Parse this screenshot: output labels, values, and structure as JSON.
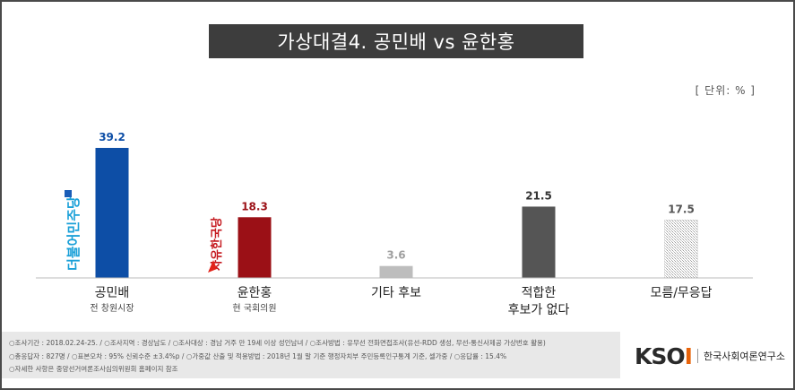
{
  "title": "가상대결4. 공민배 vs 윤한홍",
  "unit": "[ 단위: % ]",
  "chart_data": {
    "type": "bar",
    "categories": [
      "공민배",
      "윤한홍",
      "기타 후보",
      "적합한 후보가 없다",
      "모름/무응답"
    ],
    "subtitles": [
      "전 창원시장",
      "현 국회의원",
      "",
      "",
      ""
    ],
    "values": [
      39.2,
      18.3,
      3.6,
      21.5,
      17.5
    ],
    "value_labels": [
      "39.2",
      "18.3",
      "3.6",
      "21.5",
      "17.5"
    ],
    "colors": [
      "#0d4ea6",
      "#9b1016",
      "#bdbdbd",
      "#555555",
      "hatch"
    ],
    "label_colors": [
      "#0d4ea6",
      "#9b1016",
      "#a0a0a0",
      "#333333",
      "#555555"
    ],
    "ylim": [
      0,
      45
    ],
    "party_logos": [
      "더불어민주당",
      "자유한국당",
      "",
      "",
      ""
    ]
  },
  "category_lines": [
    [
      "공민배"
    ],
    [
      "윤한홍"
    ],
    [
      "기타 후보"
    ],
    [
      "적합한",
      "후보가 없다"
    ],
    [
      "모름/무응답"
    ]
  ],
  "footer": {
    "line1": "○조사기간 : 2018.02.24-25. / ○조사지역 : 경상남도 / ○조사대상 : 경남 거주 만 19세 이상 성인남녀 / ○조사방법 : 유무선 전화면접조사(유선-RDD 생성, 무선-통신사제공 가상번호 활용)",
    "line2": "○총응답자 : 827명 / ○표본오차 : 95% 신뢰수준 ±3.4%p / ○가중값 산출 및 적용방법 : 2018년 1월 말 기준 행정자치부 주민등록인구통계 기준, 셀가중 / ○응답률 : 15.4%",
    "line3": "○자세한 사항은 중앙선거여론조사심의위원회 홈페이지 참조"
  },
  "logo": {
    "mark": "KSOI",
    "name": "한국사회여론연구소"
  }
}
